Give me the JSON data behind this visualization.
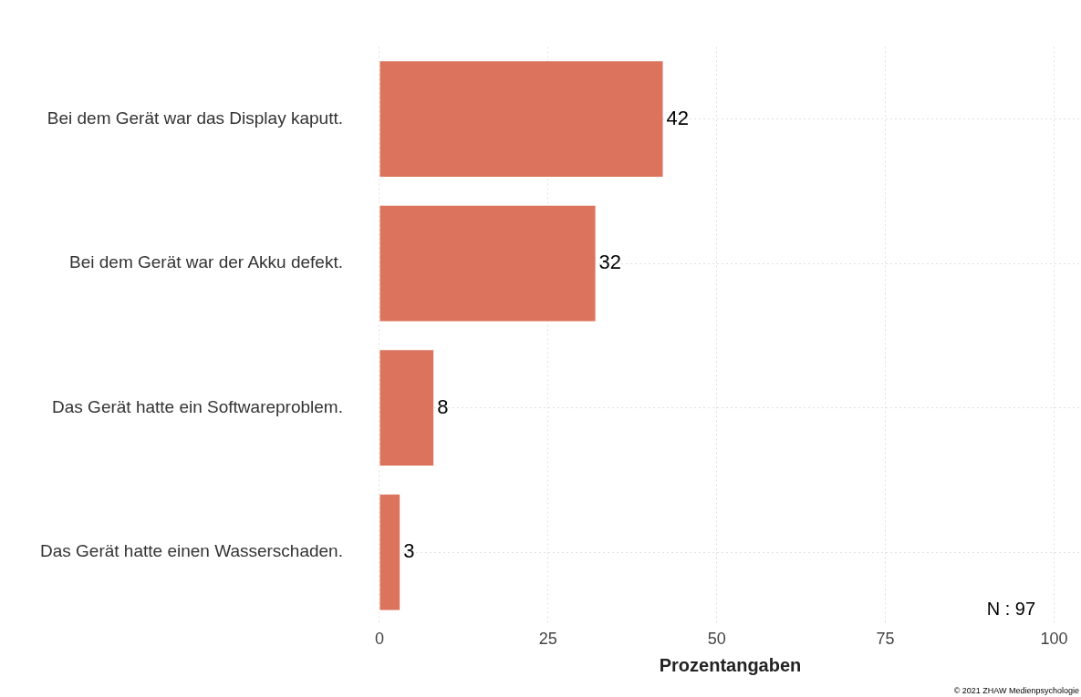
{
  "chart_data": {
    "type": "bar",
    "orientation": "horizontal",
    "xlabel": "Prozentangaben",
    "categories": [
      "Bei dem Gerät war das Display kaputt.",
      "Bei dem Gerät war der Akku defekt.",
      "Das Gerät hatte ein Softwareproblem.",
      "Das Gerät hatte einen Wasserschaden."
    ],
    "values": [
      42,
      32,
      8,
      3
    ],
    "color": "#dc735c",
    "data_labels": true,
    "xlim": [
      0,
      104
    ],
    "xticks": [
      0,
      25,
      50,
      75,
      100
    ],
    "grid": true,
    "legend": false,
    "annotations": [
      "N : 97",
      "© 2021 ZHAW Medienpsychologie"
    ]
  }
}
